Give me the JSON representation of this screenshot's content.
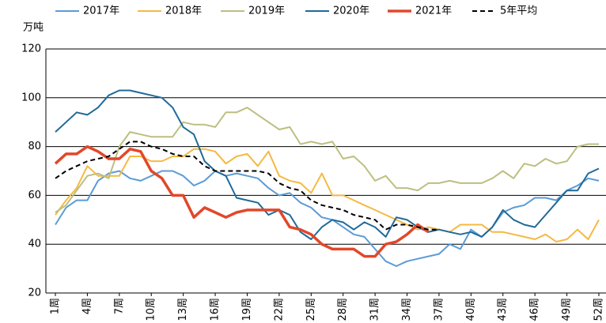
{
  "chart_data": {
    "type": "line",
    "y_label": "万吨",
    "categories": [
      "1周",
      null,
      null,
      "4周",
      null,
      null,
      "7周",
      null,
      null,
      "10周",
      null,
      null,
      "13周",
      null,
      null,
      "16周",
      null,
      null,
      "19周",
      null,
      null,
      "22周",
      null,
      null,
      "25周",
      null,
      null,
      "28周",
      null,
      null,
      "31周",
      null,
      null,
      "34周",
      null,
      null,
      "37周",
      null,
      null,
      "40周",
      null,
      null,
      "43周",
      null,
      null,
      "46周",
      null,
      null,
      "49周",
      null,
      null,
      "52周"
    ],
    "ylim": [
      20,
      120
    ],
    "yticks": [
      20,
      40,
      60,
      80,
      100,
      120
    ],
    "grid": true,
    "series": [
      {
        "name": "2017年",
        "color": "#5b9bd5",
        "width": 2,
        "values": [
          48,
          55,
          58,
          58,
          66,
          69,
          70,
          67,
          66,
          68,
          70,
          70,
          68,
          64,
          66,
          70,
          68,
          69,
          68,
          67,
          63,
          60,
          61,
          57,
          55,
          51,
          50,
          47,
          44,
          43,
          38,
          33,
          31,
          33,
          34,
          35,
          36,
          40,
          38,
          46,
          43,
          47,
          53,
          55,
          56,
          59,
          59,
          58,
          62,
          64,
          67,
          66
        ]
      },
      {
        "name": "2018年",
        "color": "#f5b943",
        "width": 2,
        "values": [
          52,
          58,
          63,
          72,
          68,
          68,
          68,
          76,
          76,
          74,
          74,
          76,
          76,
          79,
          79,
          78,
          73,
          76,
          77,
          72,
          78,
          68,
          66,
          65,
          61,
          69,
          60,
          60,
          58,
          56,
          54,
          52,
          50,
          48,
          46,
          47,
          46,
          45,
          48,
          48,
          48,
          45,
          45,
          44,
          43,
          42,
          44,
          41,
          42,
          46,
          42,
          50
        ]
      },
      {
        "name": "2019年",
        "color": "#bcbf7f",
        "width": 2,
        "values": [
          53,
          56,
          62,
          68,
          69,
          67,
          80,
          86,
          85,
          84,
          84,
          84,
          90,
          89,
          89,
          88,
          94,
          94,
          96,
          93,
          90,
          87,
          88,
          81,
          82,
          81,
          82,
          75,
          76,
          72,
          66,
          68,
          63,
          63,
          62,
          65,
          65,
          66,
          65,
          65,
          65,
          67,
          70,
          67,
          73,
          72,
          75,
          73,
          74,
          80,
          81,
          81
        ]
      },
      {
        "name": "2020年",
        "color": "#1f6a98",
        "width": 2,
        "values": [
          86,
          90,
          94,
          93,
          96,
          101,
          103,
          103,
          102,
          101,
          100,
          96,
          88,
          85,
          74,
          70,
          68,
          59,
          58,
          57,
          52,
          54,
          52,
          45,
          42,
          47,
          50,
          49,
          46,
          49,
          47,
          43,
          51,
          50,
          47,
          45,
          46,
          45,
          44,
          45,
          43,
          47,
          54,
          50,
          48,
          47,
          52,
          57,
          62,
          62,
          69,
          71
        ]
      },
      {
        "name": "2021年",
        "color": "#e2472a",
        "width": 3.5,
        "values": [
          73,
          77,
          77,
          80,
          78,
          75,
          75,
          79,
          78,
          70,
          67,
          60,
          60,
          51,
          55,
          53,
          51,
          53,
          54,
          54,
          54,
          54,
          47,
          46,
          44,
          40,
          38,
          38,
          38,
          35,
          35,
          40,
          41,
          44,
          48,
          45,
          null,
          null,
          null,
          null,
          null,
          null,
          null,
          null,
          null,
          null,
          null,
          null,
          null,
          null,
          null,
          null
        ]
      },
      {
        "name": "5年平均",
        "color": "#000000",
        "width": 2,
        "dash": true,
        "values": [
          67,
          70,
          72,
          74,
          75,
          76,
          79,
          82,
          82,
          80,
          79,
          77,
          76,
          76,
          72,
          70,
          70,
          70,
          70,
          70,
          69,
          65,
          63,
          62,
          58,
          56,
          55,
          54,
          52,
          51,
          50,
          46,
          48,
          48,
          47,
          46,
          46,
          null,
          null,
          null,
          null,
          null,
          null,
          null,
          null,
          null,
          null,
          null,
          null,
          null,
          null,
          null
        ]
      }
    ]
  }
}
